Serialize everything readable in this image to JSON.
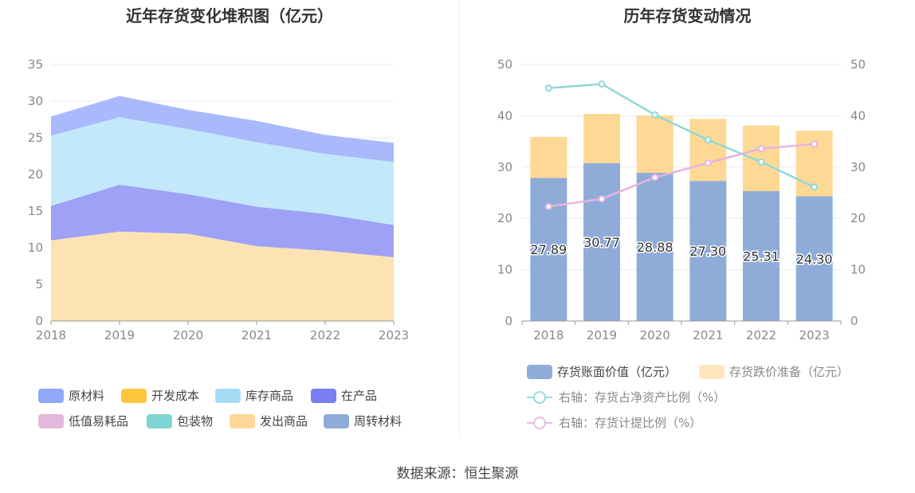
{
  "left": {
    "title": "近年存货变化堆积图（亿元）",
    "legend": [
      {
        "name": "原材料",
        "color": "#8fa8f8"
      },
      {
        "name": "开发成本",
        "color": "#ffc53d"
      },
      {
        "name": "库存商品",
        "color": "#a7dcf7"
      },
      {
        "name": "在产品",
        "color": "#7b7df2"
      },
      {
        "name": "低值易耗品",
        "color": "#e4b8dc"
      },
      {
        "name": "包装物",
        "color": "#7fd4d4"
      },
      {
        "name": "发出商品",
        "color": "#ffd79a"
      },
      {
        "name": "周转材料",
        "color": "#8facd9"
      }
    ]
  },
  "right": {
    "title": "历年存货变动情况",
    "legend": [
      {
        "name": "存货账面价值（亿元）",
        "color": "#8facd9",
        "kind": "bar"
      },
      {
        "name": "存货跌价准备（亿元）",
        "color": "#fde6bd",
        "kind": "bar"
      },
      {
        "name": "右轴：存货占净资产比例（%）",
        "color": "#93dede",
        "kind": "line"
      },
      {
        "name": "右轴：存货计提比例（%）",
        "color": "#ecb9e6",
        "kind": "line"
      }
    ]
  },
  "source": "数据来源：恒生聚源",
  "chart_data": [
    {
      "type": "area",
      "stacked": true,
      "title": "近年存货变化堆积图（亿元）",
      "x": [
        "2018",
        "2019",
        "2020",
        "2021",
        "2022",
        "2023"
      ],
      "yticks": [
        "0",
        "5",
        "10",
        "15",
        "20",
        "25",
        "30",
        "35"
      ],
      "ylim": [
        0,
        35
      ],
      "series": [
        {
          "name": "发出商品",
          "color": "#fde3b3",
          "values": [
            11.0,
            12.2,
            11.9,
            10.2,
            9.6,
            8.7
          ]
        },
        {
          "name": "在产品",
          "color": "#9ea1f6",
          "values": [
            4.7,
            6.4,
            5.4,
            5.4,
            5.0,
            4.4
          ]
        },
        {
          "name": "库存商品",
          "color": "#c2e8fa",
          "values": [
            9.6,
            9.2,
            8.9,
            8.8,
            8.2,
            8.6
          ]
        },
        {
          "name": "原材料",
          "color": "#a9b9fb",
          "values": [
            2.6,
            2.9,
            2.6,
            2.9,
            2.6,
            2.6
          ]
        }
      ]
    },
    {
      "type": "bar",
      "stacked": true,
      "title": "历年存货变动情况",
      "categories": [
        "2018",
        "2019",
        "2020",
        "2021",
        "2022",
        "2023"
      ],
      "ylim": [
        0,
        50
      ],
      "y2lim": [
        0,
        50
      ],
      "yticks": [
        "0",
        "10",
        "20",
        "30",
        "40",
        "50"
      ],
      "series": [
        {
          "name": "存货账面价值（亿元）",
          "color": "#8facd9",
          "values": [
            27.89,
            30.77,
            28.88,
            27.3,
            25.31,
            24.3
          ],
          "data_labels": [
            "27.89",
            "30.77",
            "28.88",
            "27.30",
            "25.31",
            "24.30"
          ]
        },
        {
          "name": "存货跌价准备（亿元）",
          "color": "#fdd995",
          "values": [
            8.0,
            9.6,
            11.2,
            12.1,
            12.8,
            12.8
          ]
        }
      ],
      "lines": [
        {
          "name": "右轴：存货占净资产比例（%）",
          "axis": "right",
          "color": "#8fd8d8",
          "values": [
            45.4,
            46.2,
            40.2,
            35.3,
            31.0,
            26.1
          ]
        },
        {
          "name": "右轴：存货计提比例（%）",
          "axis": "right",
          "color": "#e8b2e0",
          "values": [
            22.3,
            23.8,
            28.0,
            30.8,
            33.6,
            34.5
          ]
        }
      ]
    }
  ]
}
